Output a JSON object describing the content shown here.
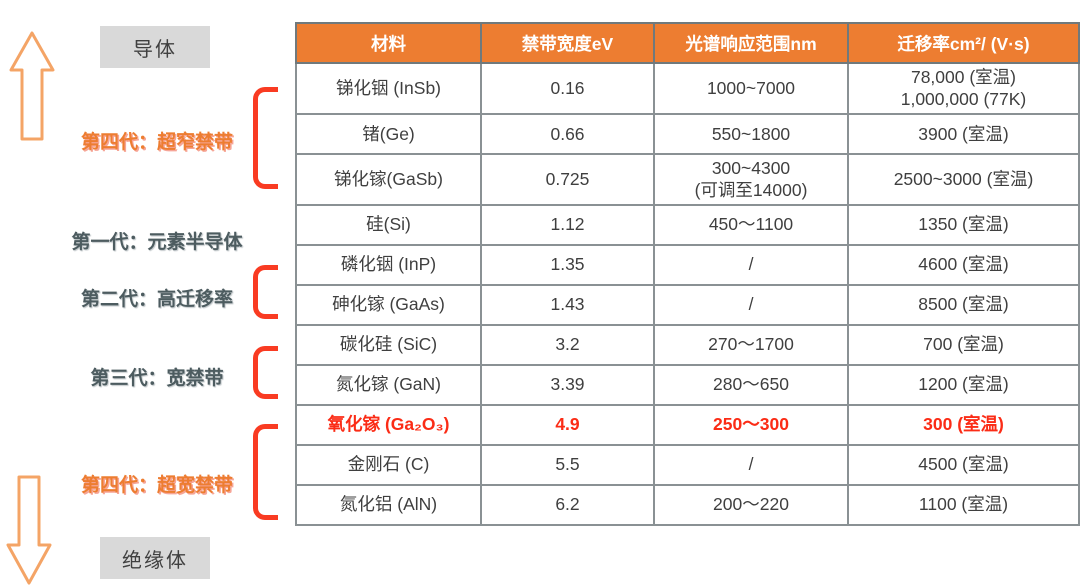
{
  "chart_data": {
    "type": "table",
    "columns": [
      "材料",
      "禁带宽度eV",
      "光谱响应范围nm",
      "迁移率cm²/ (V·s)"
    ],
    "rows": [
      {
        "material": "锑化铟 (InSb)",
        "bandgap": "0.16",
        "response": "1000~7000",
        "mobility": "78,000 (室温)",
        "mobility2": "1,000,000 (77K)",
        "highlight": false
      },
      {
        "material": "锗(Ge)",
        "bandgap": "0.66",
        "response": "550~1800",
        "mobility": "3900 (室温)",
        "highlight": false
      },
      {
        "material": "锑化镓(GaSb)",
        "bandgap": "0.725",
        "response": "300~4300",
        "response2": "(可调至14000)",
        "mobility": "2500~3000 (室温)",
        "highlight": false
      },
      {
        "material": "硅(Si)",
        "bandgap": "1.12",
        "response": "450～1100",
        "mobility": "1350 (室温)",
        "highlight": false
      },
      {
        "material": "磷化铟 (InP)",
        "bandgap": "1.35",
        "response": "/",
        "mobility": "4600 (室温)",
        "highlight": false
      },
      {
        "material": "砷化镓 (GaAs)",
        "bandgap": "1.43",
        "response": "/",
        "mobility": "8500 (室温)",
        "highlight": false
      },
      {
        "material": "碳化硅 (SiC)",
        "bandgap": "3.2",
        "response": "270～1700",
        "mobility": "700 (室温)",
        "highlight": false
      },
      {
        "material": "氮化镓 (GaN)",
        "bandgap": "3.39",
        "response": "280～650",
        "mobility": "1200 (室温)",
        "highlight": false
      },
      {
        "material": "氧化镓 (Ga₂O₃)",
        "bandgap": "4.9",
        "response": "250～300",
        "mobility": "300 (室温)",
        "highlight": true
      },
      {
        "material": "金刚石 (C)",
        "bandgap": "5.5",
        "response": "/",
        "mobility": "4500 (室温)",
        "highlight": false
      },
      {
        "material": "氮化铝 (AlN)",
        "bandgap": "6.2",
        "response": "200～220",
        "mobility": "1100 (室温)",
        "highlight": false
      }
    ],
    "row_groups": [
      {
        "label": "第四代：超窄禁带",
        "materials": [
          "锑化铟 (InSb)",
          "锗(Ge)",
          "锑化镓(GaSb)"
        ]
      },
      {
        "label": "第一代：元素半导体",
        "materials": [
          "硅(Si)"
        ]
      },
      {
        "label": "第二代：高迁移率",
        "materials": [
          "磷化铟 (InP)",
          "砷化镓 (GaAs)"
        ]
      },
      {
        "label": "第三代：宽禁带",
        "materials": [
          "碳化硅 (SiC)",
          "氮化镓 (GaN)"
        ]
      },
      {
        "label": "第四代：超宽禁带",
        "materials": [
          "氧化镓 (Ga₂O₃)",
          "金刚石 (C)",
          "氮化铝 (AlN)"
        ]
      }
    ],
    "highlighted_row": "氧化镓 (Ga₂O₃)",
    "annotations": {
      "top": "导体",
      "bottom": "绝缘体"
    }
  },
  "left_panel": {
    "conductor_label": "导体",
    "insulator_label": "绝缘体",
    "generations": [
      {
        "label": "第四代：超窄禁带",
        "style": "orange"
      },
      {
        "label": "第一代：元素半导体",
        "style": "gray"
      },
      {
        "label": "第二代：高迁移率",
        "style": "gray"
      },
      {
        "label": "第三代：宽禁带",
        "style": "gray"
      },
      {
        "label": "第四代：超宽禁带",
        "style": "orange"
      }
    ]
  },
  "colors": {
    "header_bg": "#ED7D31",
    "header_text": "#FFFFFF",
    "body_text": "#3F3F3F",
    "grid_line": "#8A9194",
    "grid_outer": "#5A6163",
    "highlight_red": "#FB2C16",
    "bracket_red": "#F93B22",
    "label_gray": "#4D5C60",
    "label_orange": "#ED7D31",
    "box_bg": "#D9D9D9",
    "arrow_orange": "#F4A466"
  }
}
